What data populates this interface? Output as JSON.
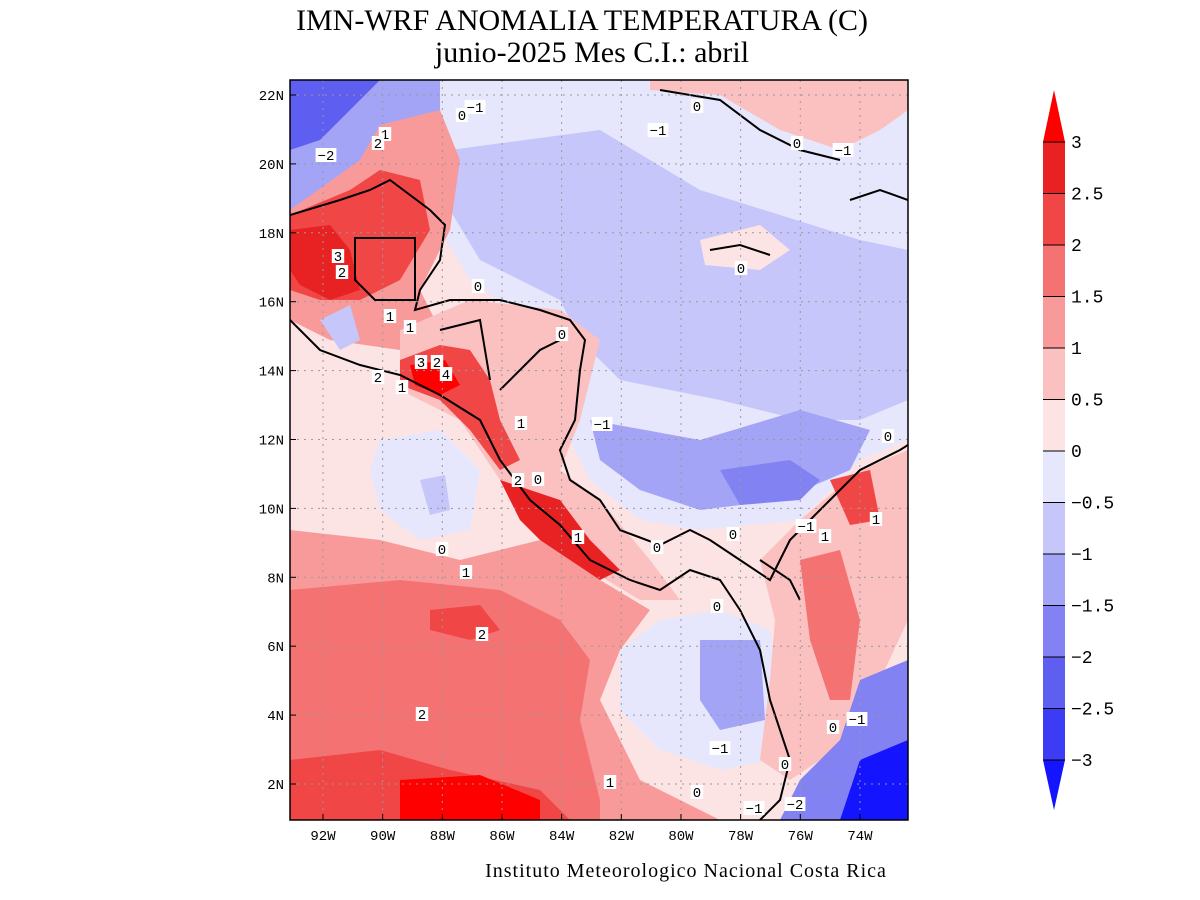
{
  "title": [
    "IMN-WRF  ANOMALIA TEMPERATURA (C)",
    "junio-2025 Mes C.I.: abril"
  ],
  "map": {
    "lat_ticks": [
      {
        "value": 2,
        "label": "2N"
      },
      {
        "value": 4,
        "label": "4N"
      },
      {
        "value": 6,
        "label": "6N"
      },
      {
        "value": 8,
        "label": "8N"
      },
      {
        "value": 10,
        "label": "10N"
      },
      {
        "value": 12,
        "label": "12N"
      },
      {
        "value": 14,
        "label": "14N"
      },
      {
        "value": 16,
        "label": "16N"
      },
      {
        "value": 18,
        "label": "18N"
      },
      {
        "value": 20,
        "label": "20N"
      },
      {
        "value": 22,
        "label": "22N"
      }
    ],
    "lon_ticks": [
      {
        "value": -92,
        "label": "92W"
      },
      {
        "value": -90,
        "label": "90W"
      },
      {
        "value": -88,
        "label": "88W"
      },
      {
        "value": -86,
        "label": "86W"
      },
      {
        "value": -84,
        "label": "84W"
      },
      {
        "value": -82,
        "label": "82W"
      },
      {
        "value": -80,
        "label": "80W"
      },
      {
        "value": -78,
        "label": "78W"
      },
      {
        "value": -76,
        "label": "76W"
      },
      {
        "value": -74,
        "label": "74W"
      }
    ],
    "contour_labels": [
      "−1",
      "0",
      "−1",
      "0",
      "−2",
      "1",
      "2",
      "0",
      "−1",
      "0",
      "3",
      "2",
      "0",
      "1",
      "1",
      "0",
      "3",
      "2",
      "4",
      "2",
      "1",
      "1",
      "−1",
      "0",
      "2",
      "0",
      "−1",
      "1",
      "1",
      "1",
      "0",
      "0",
      "0",
      "1",
      "0",
      "2",
      "2",
      "0",
      "−1",
      "−1",
      "0",
      "1",
      "0",
      "−1",
      "−2"
    ]
  },
  "colorbar": {
    "ticks": [
      {
        "value": -3,
        "label": "−3"
      },
      {
        "value": -2.5,
        "label": "−2.5"
      },
      {
        "value": -2,
        "label": "−2"
      },
      {
        "value": -1.5,
        "label": "−1.5"
      },
      {
        "value": -1,
        "label": "−1"
      },
      {
        "value": -0.5,
        "label": "−0.5"
      },
      0,
      0.5,
      1,
      1.5,
      2,
      2.5,
      3
    ],
    "colors": [
      "#1414ff",
      "#3c3cf4",
      "#5e5ef0",
      "#8282f2",
      "#a4a4f6",
      "#c6c6fa",
      "#e6e6fc",
      "#fde4e4",
      "#fbc0c0",
      "#f89a9a",
      "#f47272",
      "#f04646",
      "#e82222",
      "#ff0000"
    ]
  },
  "footer": "Instituto Meteorologico Nacional Costa Rica"
}
